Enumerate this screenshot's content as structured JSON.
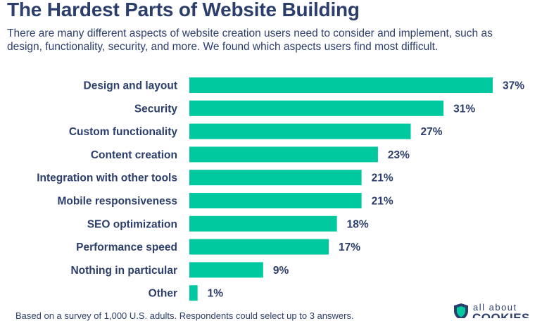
{
  "chart_data": {
    "type": "bar",
    "orientation": "horizontal",
    "title": "The Hardest Parts of Website Building",
    "subtitle": "There are many different aspects of website creation users need to consider and implement, such as design, functionality, security, and more. We found which aspects users find most difficult.",
    "categories": [
      "Design and layout",
      "Security",
      "Custom functionality",
      "Content creation",
      "Integration with other tools",
      "Mobile responsiveness",
      "SEO optimization",
      "Performance speed",
      "Nothing in particular",
      "Other"
    ],
    "values": [
      37,
      31,
      27,
      23,
      21,
      21,
      18,
      17,
      9,
      1
    ],
    "value_labels": [
      "37%",
      "31%",
      "27%",
      "23%",
      "21%",
      "21%",
      "18%",
      "17%",
      "9%",
      "1%"
    ],
    "xlim": [
      0,
      37
    ],
    "grid": false,
    "bar_color": "#00c9a0"
  },
  "footnote": "Based on a survey of 1,000 U.S. adults.  Respondents could select up to 3 answers.",
  "logo": {
    "line1": "all about",
    "line2": "COOKIES",
    "icon": "shield-logo-icon",
    "color": "#2c3e6b"
  }
}
